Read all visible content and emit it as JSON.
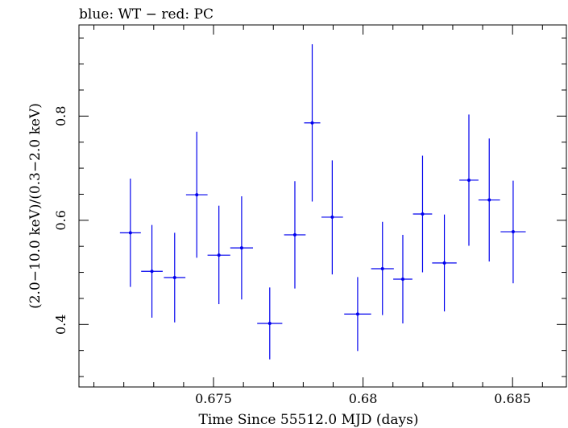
{
  "chart_data": {
    "type": "scatter",
    "title": "blue: WT − red: PC",
    "xlabel": "Time Since 55512.0 MJD (days)",
    "ylabel": "(2.0−10.0 keV)/(0.3−2.0 keV)",
    "xlim": [
      0.6705,
      0.6868
    ],
    "ylim": [
      0.28,
      0.975
    ],
    "x_ticks": [
      {
        "value": 0.675,
        "label": "0.675"
      },
      {
        "value": 0.68,
        "label": "0.68"
      },
      {
        "value": 0.685,
        "label": "0.685"
      }
    ],
    "y_ticks": [
      {
        "value": 0.4,
        "label": "0.4"
      },
      {
        "value": 0.6,
        "label": "0.6"
      },
      {
        "value": 0.8,
        "label": "0.8"
      }
    ],
    "grid": false,
    "series": [
      {
        "name": "WT",
        "color": "#0000ee",
        "points": [
          {
            "x": 0.67222,
            "y": 0.576,
            "xerr": 0.00035,
            "ylo": 0.472,
            "yhi": 0.68
          },
          {
            "x": 0.67294,
            "y": 0.502,
            "xerr": 0.00036,
            "ylo": 0.413,
            "yhi": 0.591
          },
          {
            "x": 0.6737,
            "y": 0.49,
            "xerr": 0.00036,
            "ylo": 0.404,
            "yhi": 0.576
          },
          {
            "x": 0.67444,
            "y": 0.649,
            "xerr": 0.00036,
            "ylo": 0.528,
            "yhi": 0.77
          },
          {
            "x": 0.67518,
            "y": 0.533,
            "xerr": 0.00038,
            "ylo": 0.439,
            "yhi": 0.628
          },
          {
            "x": 0.67594,
            "y": 0.547,
            "xerr": 0.00038,
            "ylo": 0.448,
            "yhi": 0.646
          },
          {
            "x": 0.67688,
            "y": 0.402,
            "xerr": 0.00042,
            "ylo": 0.333,
            "yhi": 0.471
          },
          {
            "x": 0.67772,
            "y": 0.572,
            "xerr": 0.00036,
            "ylo": 0.469,
            "yhi": 0.675
          },
          {
            "x": 0.6783,
            "y": 0.787,
            "xerr": 0.00027,
            "ylo": 0.636,
            "yhi": 0.938
          },
          {
            "x": 0.67897,
            "y": 0.606,
            "xerr": 0.00036,
            "ylo": 0.496,
            "yhi": 0.715
          },
          {
            "x": 0.67982,
            "y": 0.42,
            "xerr": 0.00045,
            "ylo": 0.349,
            "yhi": 0.491
          },
          {
            "x": 0.68065,
            "y": 0.507,
            "xerr": 0.00038,
            "ylo": 0.418,
            "yhi": 0.597
          },
          {
            "x": 0.68133,
            "y": 0.487,
            "xerr": 0.00032,
            "ylo": 0.402,
            "yhi": 0.572
          },
          {
            "x": 0.68199,
            "y": 0.612,
            "xerr": 0.00032,
            "ylo": 0.5,
            "yhi": 0.724
          },
          {
            "x": 0.68272,
            "y": 0.518,
            "xerr": 0.00041,
            "ylo": 0.425,
            "yhi": 0.611
          },
          {
            "x": 0.68354,
            "y": 0.677,
            "xerr": 0.00032,
            "ylo": 0.551,
            "yhi": 0.803
          },
          {
            "x": 0.68422,
            "y": 0.639,
            "xerr": 0.00036,
            "ylo": 0.521,
            "yhi": 0.757
          },
          {
            "x": 0.68502,
            "y": 0.578,
            "xerr": 0.00042,
            "ylo": 0.479,
            "yhi": 0.676
          }
        ]
      }
    ]
  }
}
